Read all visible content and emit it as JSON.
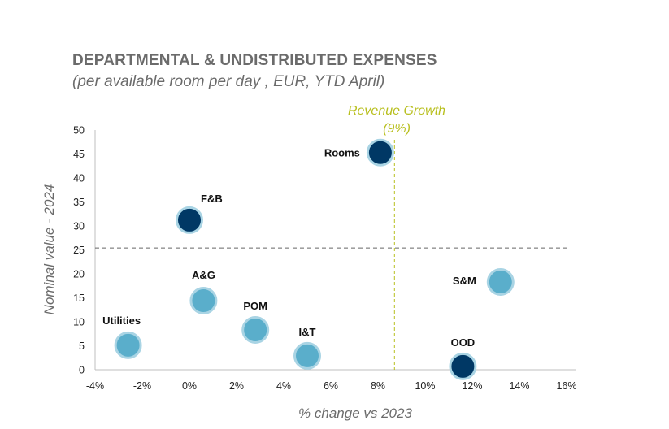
{
  "chart_data": {
    "type": "scatter",
    "title": "DEPARTMENTAL & UNDISTRIBUTED EXPENSES",
    "subtitle": "(per available room per day , EUR, YTD April)",
    "xlabel": "% change vs 2023",
    "ylabel": "Nominal value - 2024",
    "xlim": [
      -4,
      16
    ],
    "ylim": [
      0,
      50
    ],
    "x_ticks": [
      "-4%",
      "-2%",
      "0%",
      "2%",
      "4%",
      "6%",
      "8%",
      "10%",
      "12%",
      "14%",
      "16%"
    ],
    "x_tick_values": [
      -4,
      -2,
      0,
      2,
      4,
      6,
      8,
      10,
      12,
      14,
      16
    ],
    "y_ticks": [
      "0",
      "5",
      "10",
      "15",
      "20",
      "25",
      "30",
      "35",
      "40",
      "45",
      "50"
    ],
    "y_tick_values": [
      0,
      5,
      10,
      15,
      20,
      25,
      30,
      35,
      40,
      45,
      50
    ],
    "grid": false,
    "points": [
      {
        "label": "Rooms",
        "x": 8.1,
        "y": 45.3,
        "color": "#003865"
      },
      {
        "label": "F&B",
        "x": 0.0,
        "y": 31.2,
        "color": "#003865"
      },
      {
        "label": "A&G",
        "x": 0.6,
        "y": 14.4,
        "color": "#5aaecb"
      },
      {
        "label": "POM",
        "x": 2.8,
        "y": 8.3,
        "color": "#5aaecb"
      },
      {
        "label": "I&T",
        "x": 5.0,
        "y": 2.9,
        "color": "#5aaecb"
      },
      {
        "label": "Utilities",
        "x": -2.6,
        "y": 5.1,
        "color": "#5aaecb"
      },
      {
        "label": "S&M",
        "x": 13.2,
        "y": 18.3,
        "color": "#5aaecb"
      },
      {
        "label": "OOD",
        "x": 11.6,
        "y": 0.7,
        "color": "#003865"
      }
    ],
    "reference_lines": {
      "vertical": {
        "label": "Revenue Growth",
        "sublabel": "(9%)",
        "x": 8.7,
        "color": "#b8bf1e"
      },
      "horizontal": {
        "y": 25.4,
        "color": "#666666"
      }
    }
  }
}
